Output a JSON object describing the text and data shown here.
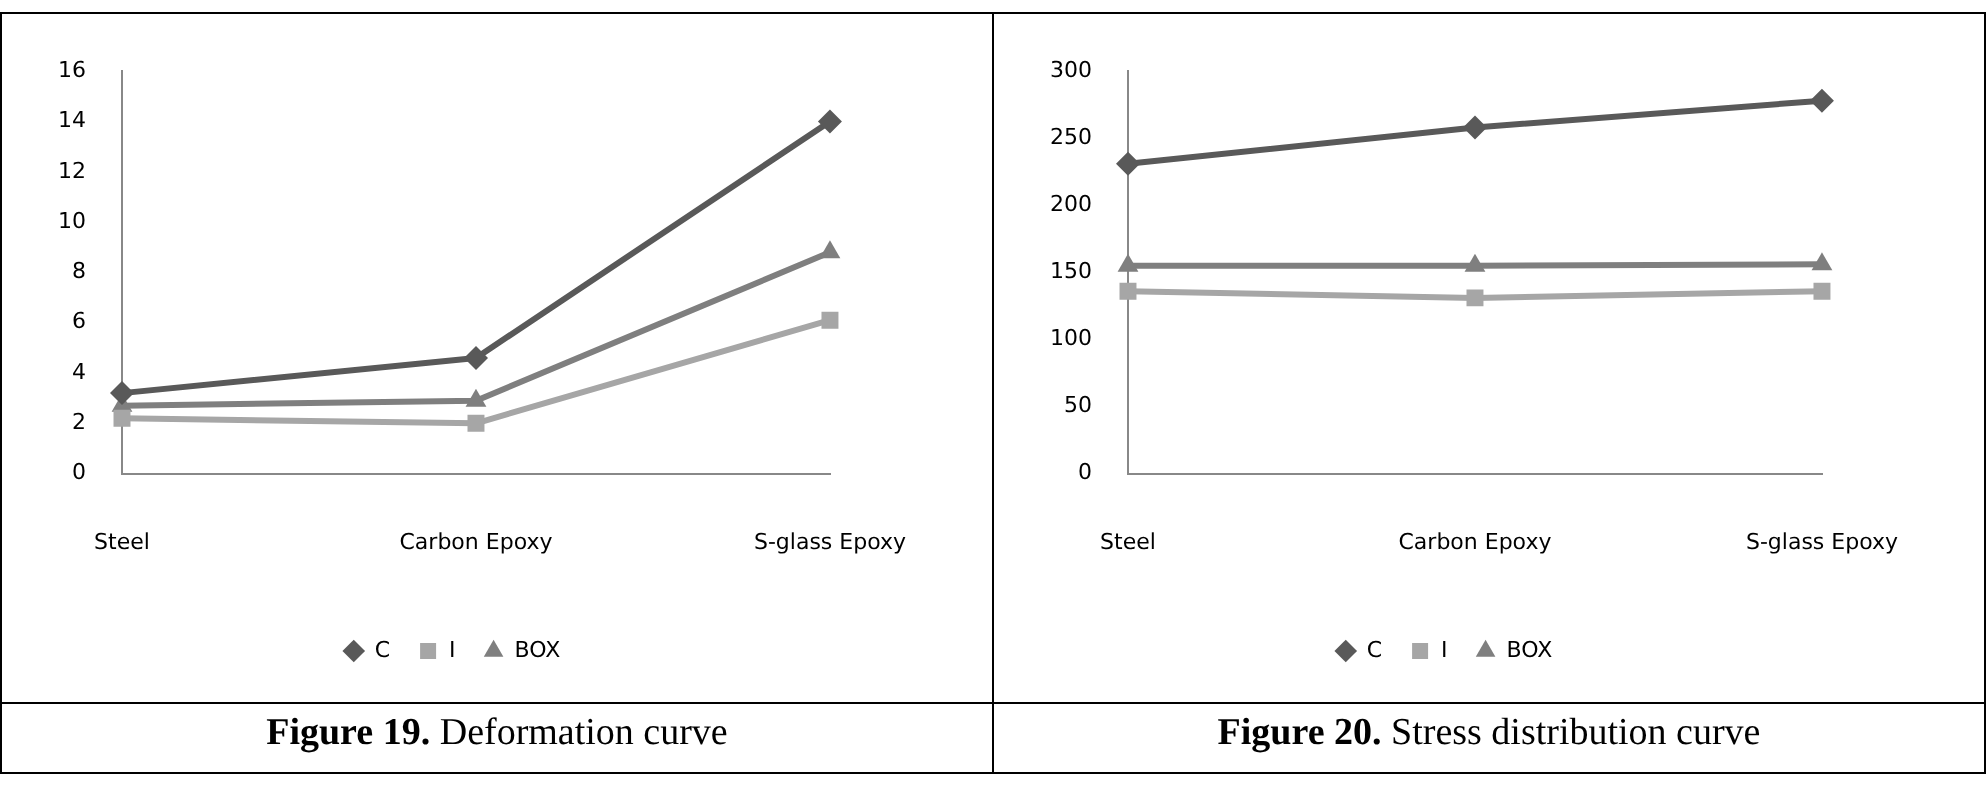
{
  "chart_data": [
    {
      "type": "line",
      "title": "Figure 19. Deformation curve",
      "categories": [
        "Steel",
        "Carbon Epoxy",
        "S-glass Epoxy"
      ],
      "ylim": [
        0,
        16
      ],
      "yticks": [
        0,
        2,
        4,
        6,
        8,
        10,
        12,
        14,
        16
      ],
      "grid": false,
      "legend": "bottom",
      "series": [
        {
          "name": "C",
          "color": "#595959",
          "marker": "diamond",
          "values": [
            3.2,
            4.6,
            14.0
          ]
        },
        {
          "name": "I",
          "color": "#a6a6a6",
          "marker": "square",
          "values": [
            2.2,
            2.0,
            6.1
          ]
        },
        {
          "name": "BOX",
          "color": "#7f7f7f",
          "marker": "triangle",
          "values": [
            2.7,
            2.9,
            8.8
          ]
        }
      ]
    },
    {
      "type": "line",
      "title": "Figure 20. Stress distribution curve",
      "categories": [
        "Steel",
        "Carbon Epoxy",
        "S-glass Epoxy"
      ],
      "ylim": [
        0,
        300
      ],
      "yticks": [
        0,
        50,
        100,
        150,
        200,
        250,
        300
      ],
      "grid": false,
      "legend": "bottom",
      "series": [
        {
          "name": "C",
          "color": "#595959",
          "marker": "diamond",
          "values": [
            231,
            258,
            278
          ]
        },
        {
          "name": "I",
          "color": "#a6a6a6",
          "marker": "square",
          "values": [
            136,
            131,
            136
          ]
        },
        {
          "name": "BOX",
          "color": "#7f7f7f",
          "marker": "triangle",
          "values": [
            155,
            155,
            156
          ]
        }
      ]
    }
  ]
}
